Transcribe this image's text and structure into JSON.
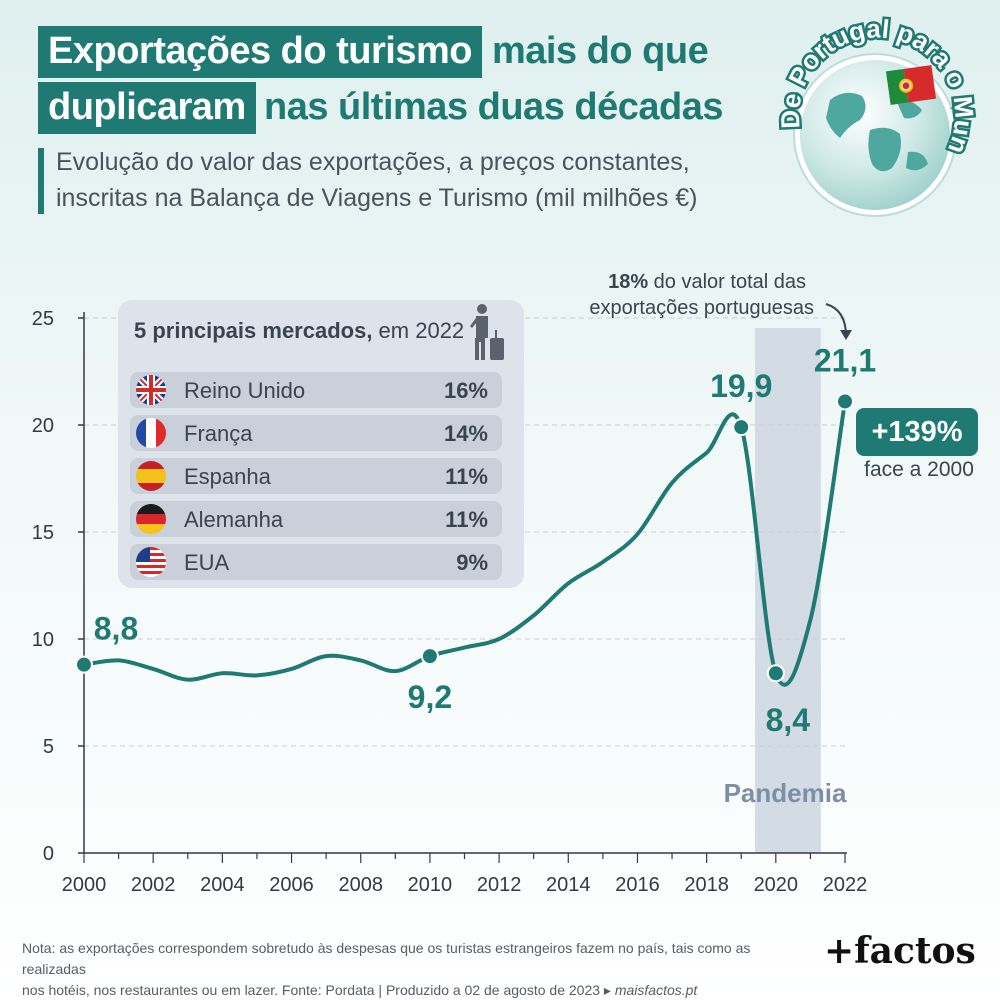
{
  "title": {
    "part1_highlight": "Exportações do turismo",
    "part1_rest": "mais do que",
    "part2_highlight": "duplicaram",
    "part2_rest": "nas últimas duas décadas"
  },
  "subtitle": {
    "line1": "Evolução do valor das exportações, a preços constantes,",
    "line2": "inscritas na Balança de Viagens e Turismo (mil milhões €)"
  },
  "badge": {
    "text": "De Portugal para o Mundo"
  },
  "markets": {
    "title_bold": "5 principais mercados,",
    "title_rest": " em 2022",
    "items": [
      {
        "name": "Reino Unido",
        "pct": "16%",
        "flag": "uk-flag-icon"
      },
      {
        "name": "França",
        "pct": "14%",
        "flag": "france-flag-icon"
      },
      {
        "name": "Espanha",
        "pct": "11%",
        "flag": "spain-flag-icon"
      },
      {
        "name": "Alemanha",
        "pct": "11%",
        "flag": "germany-flag-icon"
      },
      {
        "name": "EUA",
        "pct": "9%",
        "flag": "usa-flag-icon"
      }
    ]
  },
  "annotation_top": {
    "bold": "18%",
    "line1_rest": " do valor total das",
    "line2": "exportações portuguesas"
  },
  "delta": {
    "value": "+139%",
    "note": "face a 2000"
  },
  "pandemic_label": "Pandemia",
  "note": {
    "line1": "Nota: as exportações correspondem sobretudo às despesas que os turistas estrangeiros fazem no país, tais como as realizadas",
    "line2": "nos hotéis, nos restaurantes ou em lazer. Fonte: Pordata | Produzido a 02 de agosto de 2023 ▸ ",
    "site": "maisfactos.pt"
  },
  "brand": "+factos",
  "colors": {
    "accent": "#1f7a74",
    "panel": "#dde3ea",
    "pandemic_band": "#d3dbe4",
    "grid": "#c8cfd6"
  },
  "chart_data": {
    "type": "line",
    "xlim": [
      2000,
      2022
    ],
    "ylim": [
      0,
      25
    ],
    "y_ticks": [
      0,
      5,
      10,
      15,
      20,
      25
    ],
    "x_ticks": [
      2000,
      2002,
      2004,
      2006,
      2008,
      2010,
      2012,
      2014,
      2016,
      2018,
      2020,
      2022
    ],
    "grid": "horizontal dashed",
    "series": [
      {
        "x": [
          2000,
          2001,
          2002,
          2003,
          2004,
          2005,
          2006,
          2007,
          2008,
          2009,
          2010,
          2011,
          2012,
          2013,
          2014,
          2015,
          2016,
          2017,
          2018,
          2019,
          2020,
          2021,
          2022
        ],
        "y": [
          8.8,
          9.0,
          8.6,
          8.1,
          8.4,
          8.3,
          8.6,
          9.2,
          9.0,
          8.5,
          9.2,
          9.6,
          10.0,
          11.1,
          12.6,
          13.6,
          14.9,
          17.3,
          18.7,
          19.9,
          8.4,
          10.9,
          21.1
        ]
      }
    ],
    "point_labels": [
      {
        "x": 2000,
        "y": 8.8,
        "label": "8,8"
      },
      {
        "x": 2010,
        "y": 9.2,
        "label": "9,2"
      },
      {
        "x": 2019,
        "y": 19.9,
        "label": "19,9"
      },
      {
        "x": 2020,
        "y": 8.4,
        "label": "8,4"
      },
      {
        "x": 2022,
        "y": 21.1,
        "label": "21,1"
      }
    ],
    "shaded_period": {
      "from": 2019.4,
      "to": 2021.3,
      "label": "Pandemia"
    }
  }
}
